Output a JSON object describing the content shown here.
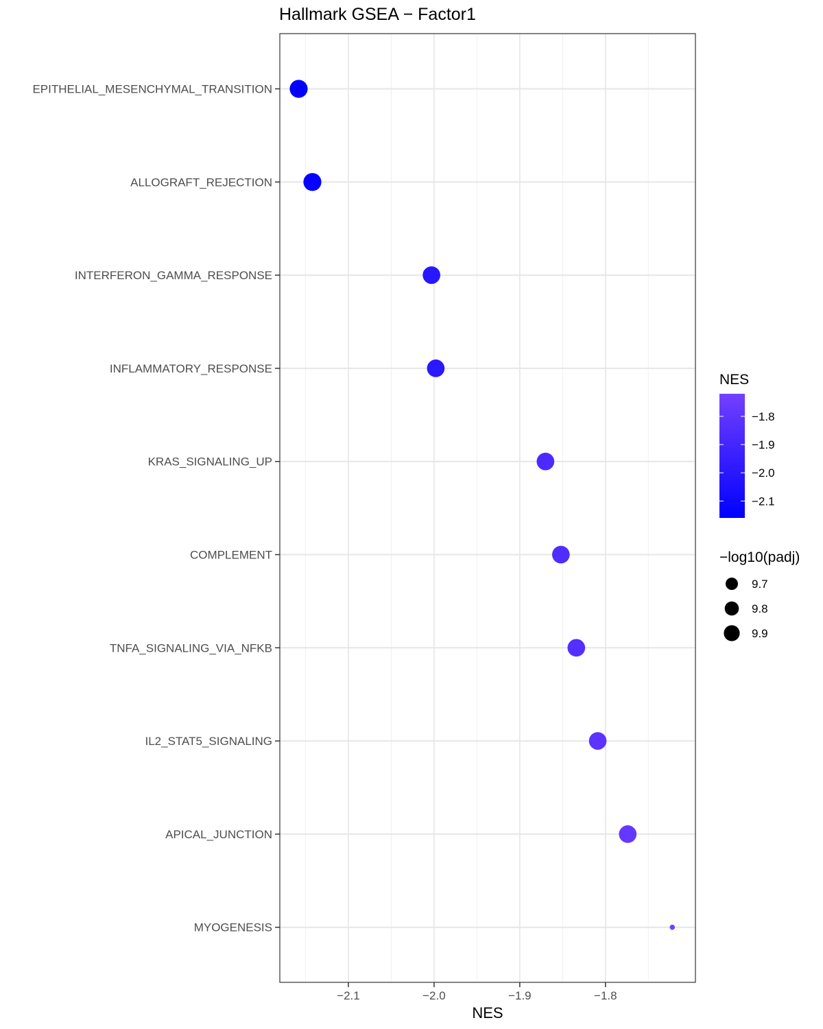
{
  "chart_data": {
    "type": "scatter",
    "title": "Hallmark GSEA − Factor1",
    "xlabel": "NES",
    "ylabel": "",
    "xlim": [
      -2.18,
      -1.695
    ],
    "x_ticks": [
      -2.1,
      -2.0,
      -1.9,
      -1.8
    ],
    "x_tick_labels": [
      "−2.1",
      "−2.0",
      "−1.9",
      "−1.8"
    ],
    "grid": true,
    "categories": [
      "EPITHELIAL_MESENCHYMAL_TRANSITION",
      "ALLOGRAFT_REJECTION",
      "INTERFERON_GAMMA_RESPONSE",
      "INFLAMMATORY_RESPONSE",
      "KRAS_SIGNALING_UP",
      "COMPLEMENT",
      "TNFA_SIGNALING_VIA_NFKB",
      "IL2_STAT5_SIGNALING",
      "APICAL_JUNCTION",
      "MYOGENESIS"
    ],
    "series": [
      {
        "nes": [
          -2.158,
          -2.142,
          -2.003,
          -1.998,
          -1.87,
          -1.852,
          -1.834,
          -1.809,
          -1.774,
          -1.722
        ],
        "neg_log10_padj": [
          9.9,
          9.9,
          9.88,
          9.88,
          9.88,
          9.88,
          9.88,
          9.88,
          9.88,
          9.62
        ]
      }
    ],
    "legend_color": {
      "title": "NES",
      "ticks": [
        -1.8,
        -1.9,
        -2.0,
        -2.1
      ],
      "tick_labels": [
        "−1.8",
        "−1.9",
        "−2.0",
        "−2.1"
      ],
      "range": [
        -2.16,
        -1.72
      ],
      "low_color": "#0000ff",
      "high_color": "#7340ff",
      "placement": "right"
    },
    "legend_size": {
      "title": "−log10(padj)",
      "values": [
        9.7,
        9.8,
        9.9
      ],
      "labels": [
        "9.7",
        "9.8",
        "9.9"
      ],
      "placement": "right"
    }
  }
}
